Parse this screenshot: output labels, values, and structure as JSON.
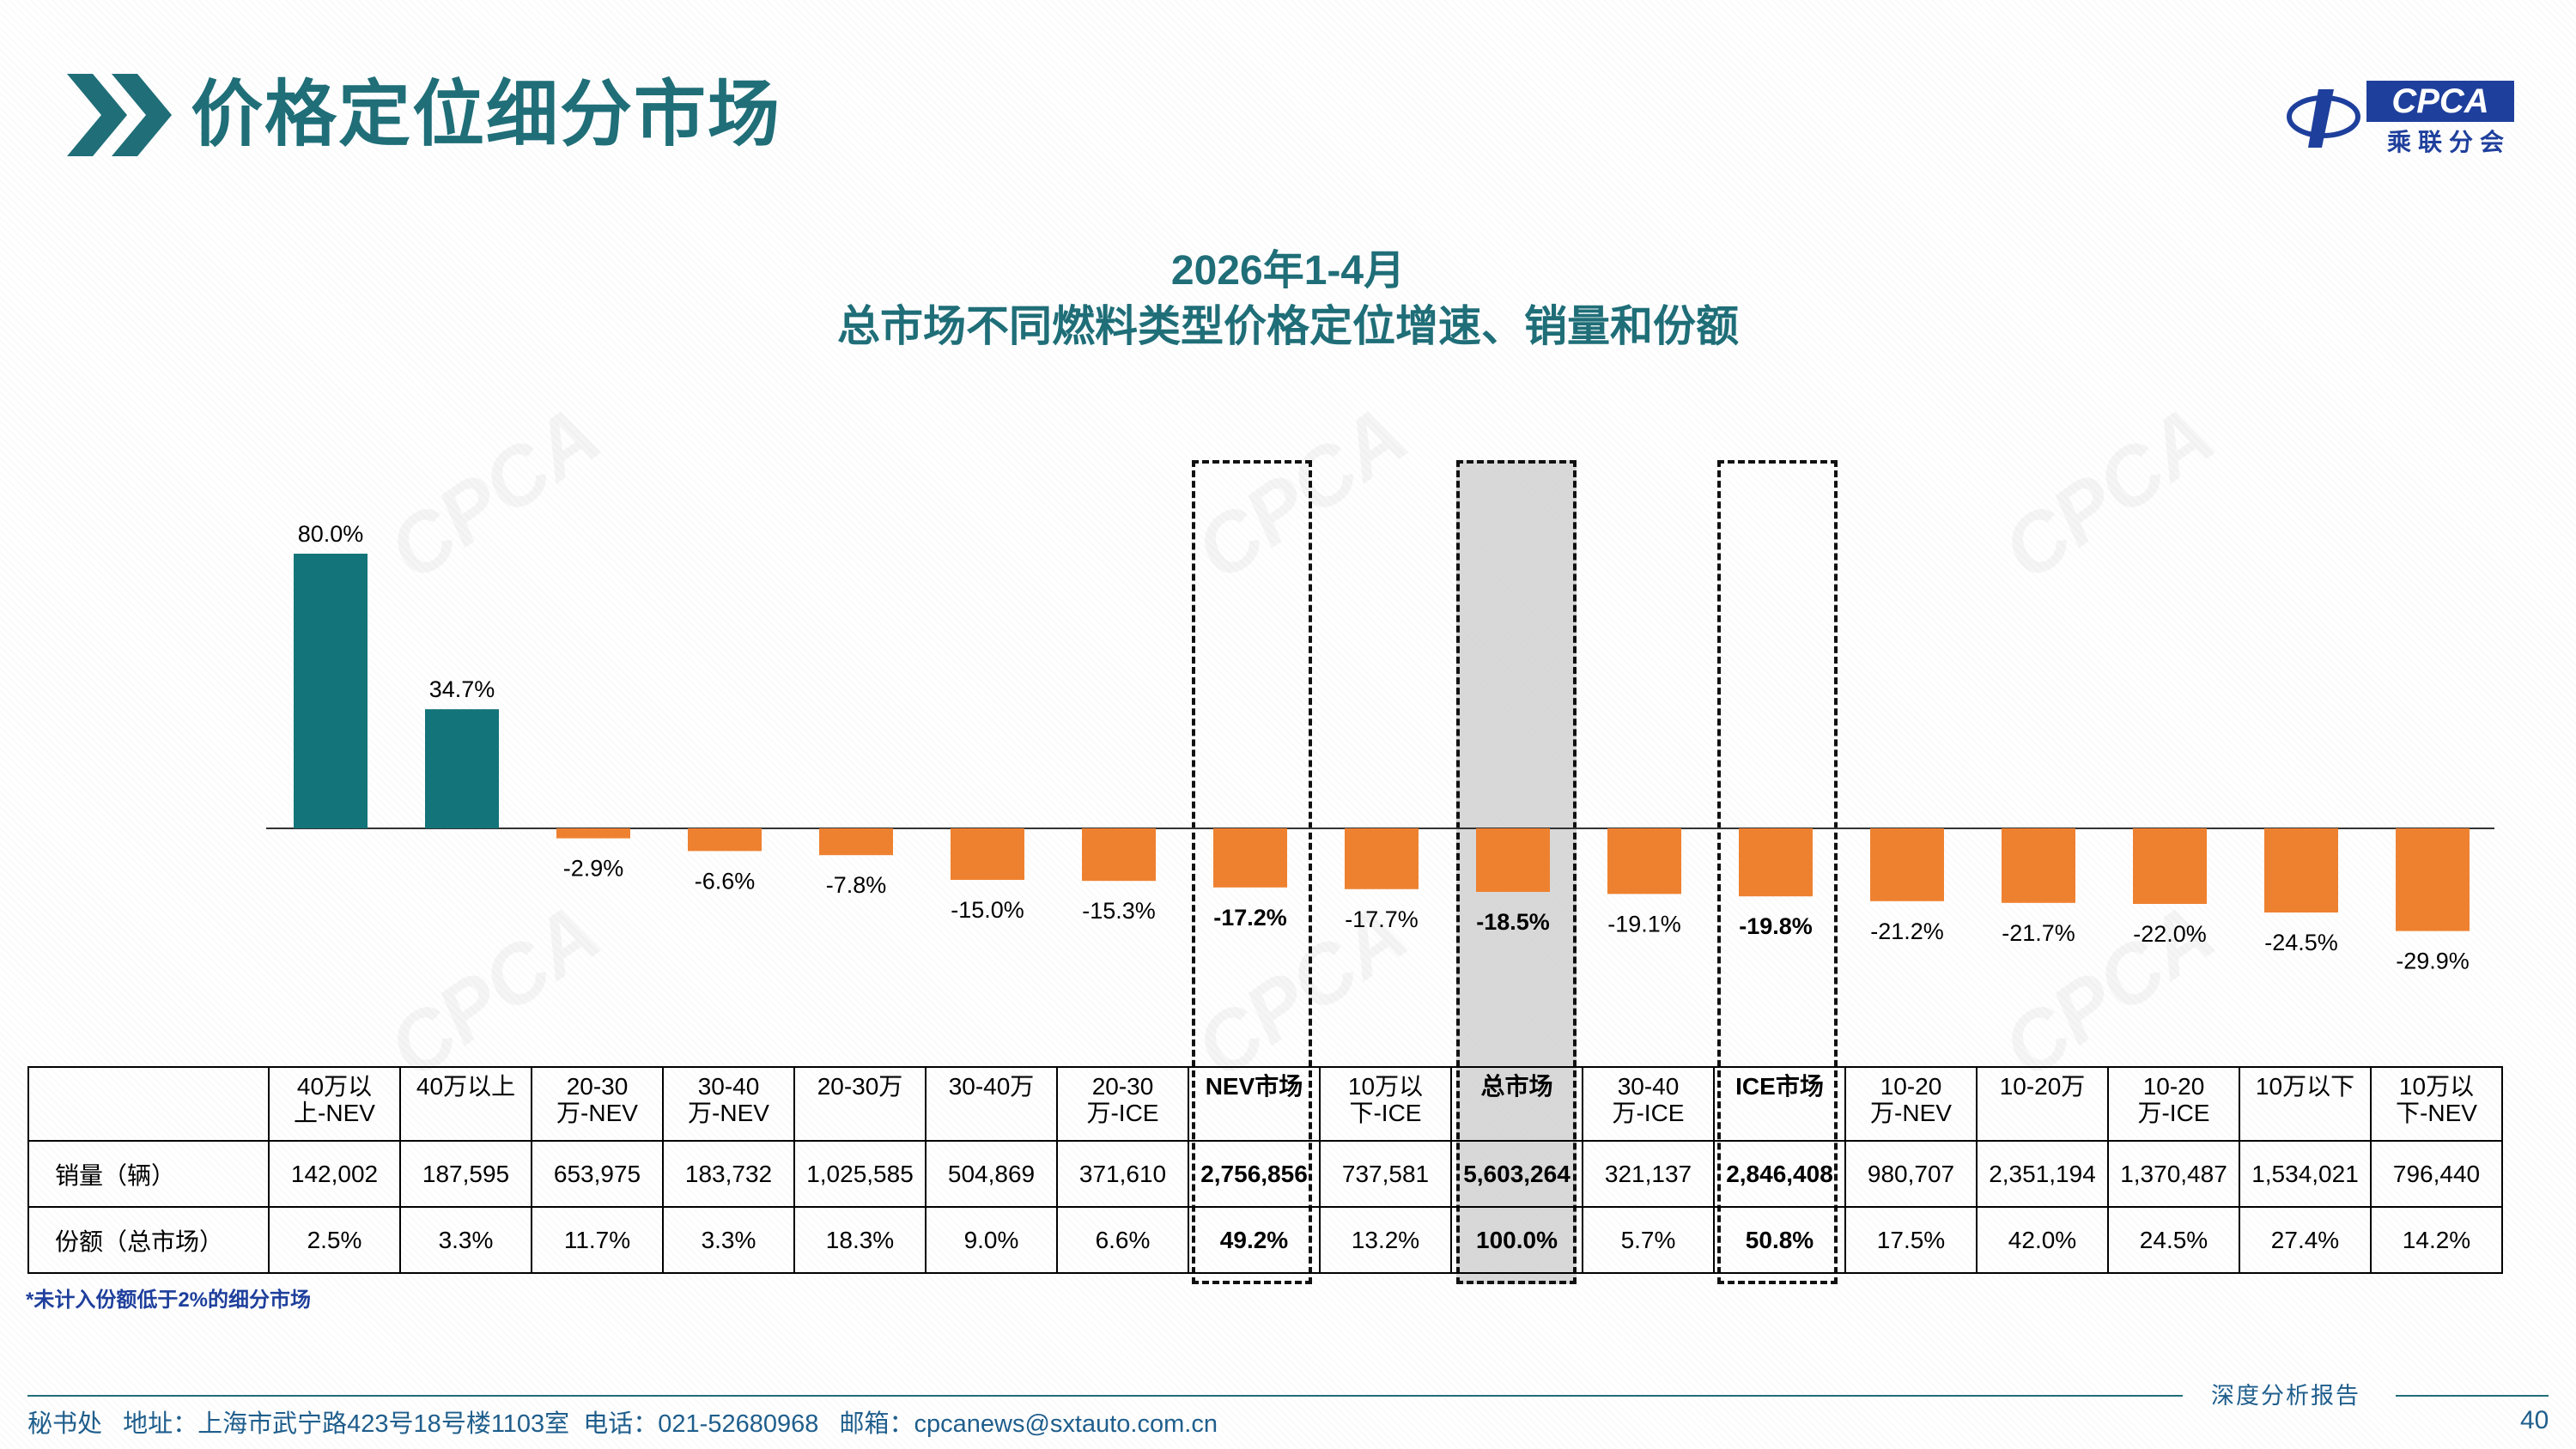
{
  "header": {
    "title": "价格定位细分市场",
    "logo": {
      "mark": "CPCA",
      "subtitle": "乘联分会"
    }
  },
  "chart_data": {
    "type": "bar",
    "title_line1": "2026年1-4月",
    "title_line2": "总市场不同燃料类型价格定位增速、销量和份额",
    "categories": [
      "40万以上-NEV",
      "40万以上",
      "20-30万-NEV",
      "30-40万-NEV",
      "20-30万",
      "30-40万",
      "20-30万-ICE",
      "NEV市场",
      "10万以下-ICE",
      "总市场",
      "30-40万-ICE",
      "ICE市场",
      "10-20万-NEV",
      "10-20万",
      "10-20万-ICE",
      "10万以下",
      "10万以下-NEV"
    ],
    "values": [
      80.0,
      34.7,
      -2.9,
      -6.6,
      -7.8,
      -15.0,
      -15.3,
      -17.2,
      -17.7,
      -18.5,
      -19.1,
      -19.8,
      -21.2,
      -21.7,
      -22.0,
      -24.5,
      -29.9
    ],
    "value_labels": [
      "80.0%",
      "34.7%",
      "-2.9%",
      "-6.6%",
      "-7.8%",
      "-15.0%",
      "-15.3%",
      "-17.2%",
      "-17.7%",
      "-18.5%",
      "-19.1%",
      "-19.8%",
      "-21.2%",
      "-21.7%",
      "-22.0%",
      "-24.5%",
      "-29.9%"
    ],
    "highlighted": [
      7,
      9,
      11
    ],
    "colors": {
      "positive": "#13747a",
      "negative": "#ee8130"
    },
    "grid": false,
    "legend": "none"
  },
  "table": {
    "headers": [
      [
        "40万以",
        "上-NEV"
      ],
      [
        "40万以上"
      ],
      [
        "20-30",
        "万-NEV"
      ],
      [
        "30-40",
        "万-NEV"
      ],
      [
        "20-30万"
      ],
      [
        "30-40万"
      ],
      [
        "20-30",
        "万-ICE"
      ],
      [
        "NEV市场"
      ],
      [
        "10万以",
        "下-ICE"
      ],
      [
        "总市场"
      ],
      [
        "30-40",
        "万-ICE"
      ],
      [
        "ICE市场"
      ],
      [
        "10-20",
        "万-NEV"
      ],
      [
        "10-20万"
      ],
      [
        "10-20",
        "万-ICE"
      ],
      [
        "10万以下"
      ],
      [
        "10万以",
        "下-NEV"
      ]
    ],
    "rows": [
      {
        "label": "销量（辆）",
        "values": [
          "142,002",
          "187,595",
          "653,975",
          "183,732",
          "1,025,585",
          "504,869",
          "371,610",
          "2,756,856",
          "737,581",
          "5,603,264",
          "321,137",
          "2,846,408",
          "980,707",
          "2,351,194",
          "1,370,487",
          "1,534,021",
          "796,440"
        ]
      },
      {
        "label": "份额（总市场）",
        "values": [
          "2.5%",
          "3.3%",
          "11.7%",
          "3.3%",
          "18.3%",
          "9.0%",
          "6.6%",
          "49.2%",
          "13.2%",
          "100.0%",
          "5.7%",
          "50.8%",
          "17.5%",
          "42.0%",
          "24.5%",
          "27.4%",
          "14.2%"
        ]
      }
    ]
  },
  "footnote": "*未计入份额低于2%的细分市场",
  "watermark_text": "CPCA",
  "footer": {
    "address": "秘书处   地址：上海市武宁路423号18号楼1103室  电话：021-52680968   邮箱：cpcanews@sxtauto.com.cn",
    "tag": "深度分析报告",
    "page_number": "40"
  }
}
